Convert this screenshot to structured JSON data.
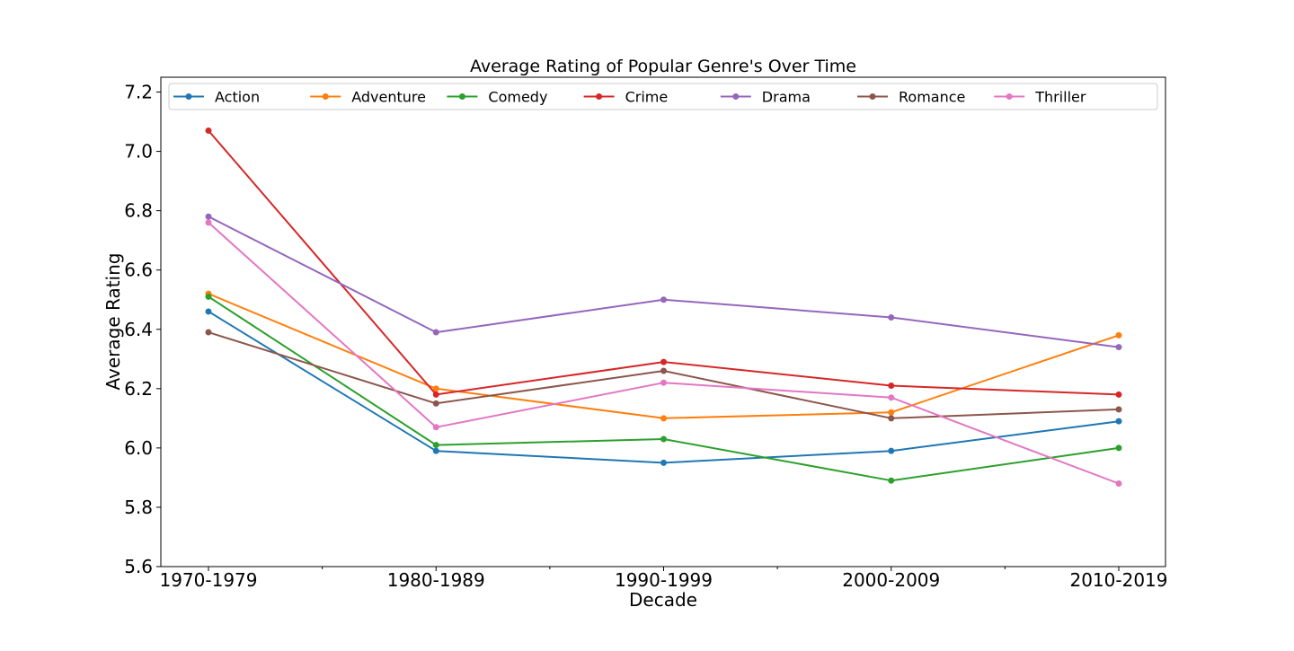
{
  "chart_data": {
    "type": "line",
    "title": "Average Rating of Popular Genre's Over Time",
    "xlabel": "Decade",
    "ylabel": "Average Rating",
    "categories": [
      "1970-1979",
      "1980-1989",
      "1990-1999",
      "2000-2009",
      "2010-2019"
    ],
    "ylim": [
      5.6,
      7.25
    ],
    "yticks": [
      "5.6",
      "5.8",
      "6.0",
      "6.2",
      "6.4",
      "6.6",
      "6.8",
      "7.0",
      "7.2"
    ],
    "grid": false,
    "legend_position": "top",
    "series": [
      {
        "name": "Action",
        "color": "#1f77b4",
        "values": [
          6.46,
          5.99,
          5.95,
          5.99,
          6.09
        ]
      },
      {
        "name": "Adventure",
        "color": "#ff7f0e",
        "values": [
          6.52,
          6.2,
          6.1,
          6.12,
          6.38
        ]
      },
      {
        "name": "Comedy",
        "color": "#2ca02c",
        "values": [
          6.51,
          6.01,
          6.03,
          5.89,
          6.0
        ]
      },
      {
        "name": "Crime",
        "color": "#d62728",
        "values": [
          7.07,
          6.18,
          6.29,
          6.21,
          6.18
        ]
      },
      {
        "name": "Drama",
        "color": "#9467bd",
        "values": [
          6.78,
          6.39,
          6.5,
          6.44,
          6.34
        ]
      },
      {
        "name": "Romance",
        "color": "#8c564b",
        "values": [
          6.39,
          6.15,
          6.26,
          6.1,
          6.13
        ]
      },
      {
        "name": "Thriller",
        "color": "#e377c2",
        "values": [
          6.76,
          6.07,
          6.22,
          6.17,
          5.88
        ]
      }
    ]
  }
}
